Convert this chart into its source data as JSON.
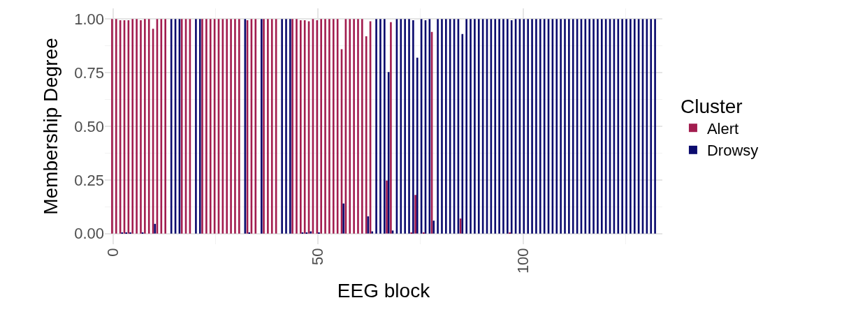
{
  "chart_data": {
    "type": "bar",
    "xlabel": "EEG block",
    "ylabel": "Membership Degree",
    "legend_title": "Cluster",
    "x": [
      0,
      1,
      2,
      3,
      4,
      5,
      6,
      7,
      8,
      9,
      10,
      11,
      12,
      13,
      14,
      15,
      16,
      17,
      18,
      19,
      20,
      21,
      22,
      23,
      24,
      25,
      26,
      27,
      28,
      29,
      30,
      31,
      32,
      33,
      34,
      35,
      36,
      37,
      38,
      39,
      40,
      41,
      42,
      43,
      44,
      45,
      46,
      47,
      48,
      49,
      50,
      51,
      52,
      53,
      54,
      55,
      56,
      57,
      58,
      59,
      60,
      61,
      62,
      63,
      64,
      65,
      66,
      67,
      68,
      69,
      70,
      71,
      72,
      73,
      74,
      75,
      76,
      77,
      78,
      79,
      80,
      81,
      82,
      83,
      84,
      85,
      86,
      87,
      88,
      89,
      90,
      91,
      92,
      93,
      94,
      95,
      96,
      97,
      98,
      99,
      100,
      101,
      102,
      103,
      104,
      105,
      106,
      107,
      108,
      109,
      110,
      111,
      112,
      113,
      114,
      115,
      116,
      117,
      118,
      119,
      120,
      121,
      122,
      123,
      124,
      125,
      126,
      127,
      128,
      129,
      130,
      131,
      132
    ],
    "series": [
      {
        "name": "Alert",
        "color": "#a21d4f",
        "values": [
          1,
          1,
          0.995,
          0.995,
          0.995,
          1,
          1,
          0.995,
          1,
          1,
          0.955,
          1,
          1,
          1,
          0,
          0,
          0,
          1,
          1,
          1,
          0,
          0,
          1,
          1,
          1,
          1,
          1,
          1,
          1,
          1,
          1,
          1,
          0,
          0.995,
          1,
          1,
          0,
          1,
          1,
          1,
          1,
          0,
          0,
          0,
          1,
          1,
          0.995,
          0.995,
          0.99,
          1,
          0.995,
          1,
          1,
          1,
          1,
          1,
          0.86,
          1,
          1,
          1,
          1,
          1,
          0.92,
          0.99,
          0,
          0,
          0,
          0.247,
          0.986,
          0,
          0,
          0,
          0,
          0.005,
          0.18,
          0,
          0.005,
          0,
          0.94,
          0,
          0,
          0,
          0,
          0,
          0,
          0.07,
          0,
          0,
          0,
          0,
          0,
          0,
          0,
          0,
          0,
          0,
          0,
          0.005,
          0,
          0,
          0,
          0,
          0,
          0,
          0,
          0,
          0,
          0,
          0,
          0,
          0,
          0,
          0,
          0,
          0,
          0,
          0,
          0,
          0,
          0,
          0,
          0,
          0,
          0,
          0,
          0,
          0,
          0,
          0,
          0,
          0,
          0,
          0
        ]
      },
      {
        "name": "Drowsy",
        "color": "#0b0b6e",
        "values": [
          0,
          0,
          0.005,
          0.005,
          0.005,
          0,
          0,
          0.005,
          0,
          0,
          0.045,
          0,
          0,
          0,
          1,
          1,
          1,
          0,
          0,
          0,
          1,
          1,
          0,
          0,
          0,
          0,
          0,
          0,
          0,
          0,
          0,
          0,
          1,
          0.005,
          0,
          0,
          1,
          0,
          0,
          0,
          0,
          1,
          1,
          1,
          0,
          0,
          0.005,
          0.005,
          0.01,
          0,
          0.005,
          0,
          0,
          0,
          0,
          0,
          0.14,
          0,
          0,
          0,
          0,
          0,
          0.08,
          0.01,
          1,
          1,
          1,
          0.753,
          0.014,
          1,
          1,
          1,
          1,
          0.995,
          0.82,
          1,
          0.995,
          1,
          0.06,
          1,
          1,
          1,
          1,
          1,
          1,
          0.93,
          1,
          1,
          1,
          1,
          1,
          1,
          1,
          1,
          1,
          1,
          1,
          0.995,
          1,
          1,
          1,
          1,
          1,
          1,
          1,
          1,
          1,
          1,
          1,
          1,
          1,
          1,
          1,
          1,
          1,
          1,
          1,
          1,
          1,
          1,
          1,
          1,
          1,
          1,
          1,
          1,
          1,
          1,
          1,
          1,
          1,
          1,
          1
        ]
      }
    ],
    "xlim": [
      -2,
      134
    ],
    "xticks": [
      0,
      50,
      100
    ],
    "ylim": [
      -0.05,
      1.05
    ],
    "yticks": [
      {
        "value": 0,
        "label": "0.00"
      },
      {
        "value": 0.25,
        "label": "0.25"
      },
      {
        "value": 0.5,
        "label": "0.50"
      },
      {
        "value": 0.75,
        "label": "0.75"
      },
      {
        "value": 1,
        "label": "1.00"
      }
    ],
    "grid": true,
    "legend": "right"
  }
}
